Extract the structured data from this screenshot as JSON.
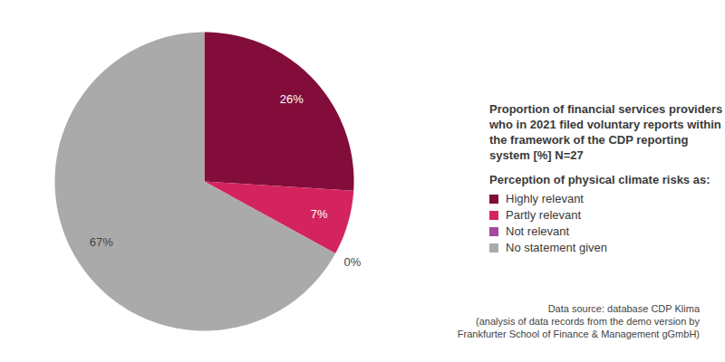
{
  "chart_data": {
    "type": "pie",
    "title": "Proportion of financial services providers who in 2021 filed voluntary reports within the framework of the CDP reporting system [%] N=27",
    "subtitle": "Perception of physical climate risks as:",
    "categories": [
      "Highly relevant",
      "Partly relevant",
      "Not relevant",
      "No statement given"
    ],
    "values": [
      26,
      7,
      0,
      67
    ],
    "value_labels": [
      "26%",
      "7%",
      "0%",
      "67%"
    ],
    "colors": [
      "#820d3a",
      "#d4245f",
      "#a24a9f",
      "#aaaaaa"
    ],
    "data_labels": true,
    "legend": "right",
    "caption": [
      "Data source: database CDP Klima",
      "(analysis of data records from the demo version by",
      "Frankfurter School of Finance & Management gGmbH)"
    ]
  }
}
